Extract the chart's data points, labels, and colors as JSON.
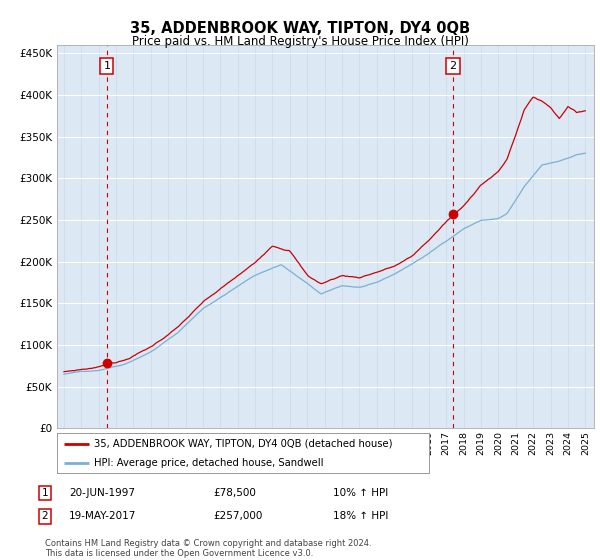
{
  "title": "35, ADDENBROOK WAY, TIPTON, DY4 0QB",
  "subtitle": "Price paid vs. HM Land Registry's House Price Index (HPI)",
  "background_color": "#dce9f5",
  "red_line_label": "35, ADDENBROOK WAY, TIPTON, DY4 0QB (detached house)",
  "blue_line_label": "HPI: Average price, detached house, Sandwell",
  "annotation1_date": "20-JUN-1997",
  "annotation1_price": "£78,500",
  "annotation1_hpi": "10% ↑ HPI",
  "annotation2_date": "19-MAY-2017",
  "annotation2_price": "£257,000",
  "annotation2_hpi": "18% ↑ HPI",
  "footer": "Contains HM Land Registry data © Crown copyright and database right 2024.\nThis data is licensed under the Open Government Licence v3.0.",
  "ylim": [
    0,
    460000
  ],
  "yticks": [
    0,
    50000,
    100000,
    150000,
    200000,
    250000,
    300000,
    350000,
    400000,
    450000
  ],
  "ytick_labels": [
    "£0",
    "£50K",
    "£100K",
    "£150K",
    "£200K",
    "£250K",
    "£300K",
    "£350K",
    "£400K",
    "£450K"
  ],
  "year_start": 1995,
  "year_end": 2025,
  "annotation1_year": 1997.47,
  "annotation2_year": 2017.38,
  "annotation1_price_val": 78500,
  "annotation2_price_val": 257000,
  "red_color": "#cc0000",
  "blue_color": "#7ab0d4",
  "dashed_color": "#cc0000",
  "grid_color_h": "#ffffff",
  "grid_color_v": "#c8d8e8",
  "spine_color": "#aaaaaa"
}
